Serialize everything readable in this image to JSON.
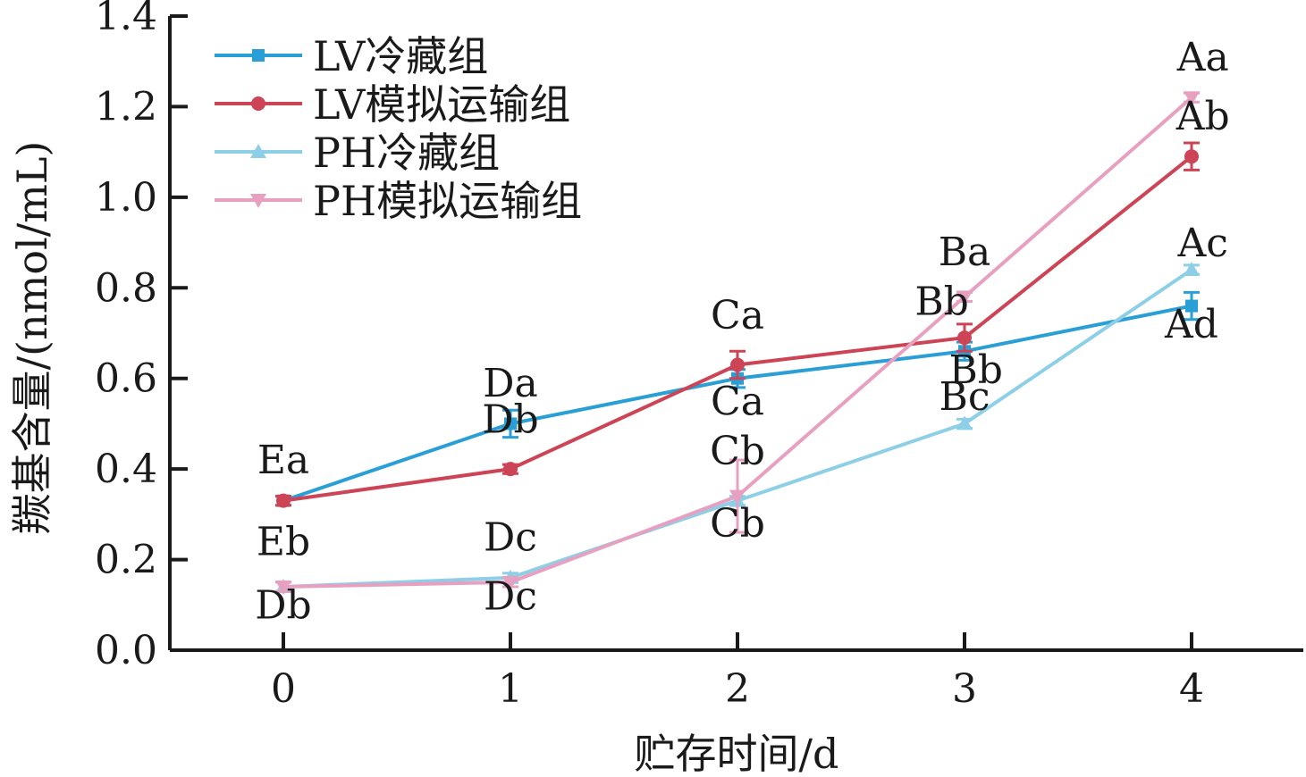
{
  "chart_data": {
    "type": "line",
    "xlabel": "贮存时间/d",
    "ylabel": "羰基含量/(nmol/mL)",
    "x": [
      0,
      1,
      2,
      3,
      4
    ],
    "xlim": [
      -0.5,
      4.5
    ],
    "ylim": [
      0.0,
      1.4
    ],
    "y_ticks": [
      "0.0",
      "0.2",
      "0.4",
      "0.6",
      "0.8",
      "1.0",
      "1.2",
      "1.4"
    ],
    "x_ticks": [
      "0",
      "1",
      "2",
      "3",
      "4"
    ],
    "grid": false,
    "legend_position": "top-left",
    "series": [
      {
        "name": "LV冷藏组",
        "color": "#2a9fd6",
        "marker": "square",
        "values": [
          0.33,
          0.5,
          0.6,
          0.66,
          0.76
        ],
        "errors": [
          0.01,
          0.03,
          0.02,
          0.02,
          0.03
        ]
      },
      {
        "name": "LV模拟运输组",
        "color": "#cc4455",
        "marker": "circle",
        "values": [
          0.33,
          0.4,
          0.63,
          0.69,
          1.09
        ],
        "errors": [
          0.01,
          0.01,
          0.03,
          0.03,
          0.03
        ]
      },
      {
        "name": "PH冷藏组",
        "color": "#8ecfe8",
        "marker": "triangle-up",
        "values": [
          0.14,
          0.16,
          0.33,
          0.5,
          0.84
        ],
        "errors": [
          0.01,
          0.01,
          0.01,
          0.01,
          0.01
        ]
      },
      {
        "name": "PH模拟运输组",
        "color": "#e8a0c0",
        "marker": "triangle-down",
        "values": [
          0.14,
          0.15,
          0.34,
          0.78,
          1.22
        ],
        "errors": [
          0.01,
          0.01,
          0.08,
          0.01,
          0.01
        ]
      }
    ],
    "annotations": [
      {
        "text": "Ea",
        "x": 0,
        "y": 0.39
      },
      {
        "text": "Eb",
        "x": 0,
        "y": 0.21
      },
      {
        "text": "Db",
        "x": 0,
        "y": 0.07
      },
      {
        "text": "Da",
        "x": 1,
        "y": 0.56
      },
      {
        "text": "Db",
        "x": 1,
        "y": 0.48
      },
      {
        "text": "Dc",
        "x": 1,
        "y": 0.22
      },
      {
        "text": "Dc",
        "x": 1,
        "y": 0.09
      },
      {
        "text": "Ca",
        "x": 2,
        "y": 0.71
      },
      {
        "text": "Ca",
        "x": 2,
        "y": 0.52
      },
      {
        "text": "Cb",
        "x": 2,
        "y": 0.41
      },
      {
        "text": "Cb",
        "x": 2,
        "y": 0.25
      },
      {
        "text": "Ba",
        "x": 3,
        "y": 0.85
      },
      {
        "text": "Bb",
        "x": 2.9,
        "y": 0.74
      },
      {
        "text": "Bb",
        "x": 3.05,
        "y": 0.59
      },
      {
        "text": "Bc",
        "x": 3,
        "y": 0.53
      },
      {
        "text": "Aa",
        "x": 4.05,
        "y": 1.28
      },
      {
        "text": "Ab",
        "x": 4.05,
        "y": 1.15
      },
      {
        "text": "Ac",
        "x": 4.05,
        "y": 0.87
      },
      {
        "text": "Ad",
        "x": 4.0,
        "y": 0.69
      }
    ]
  }
}
